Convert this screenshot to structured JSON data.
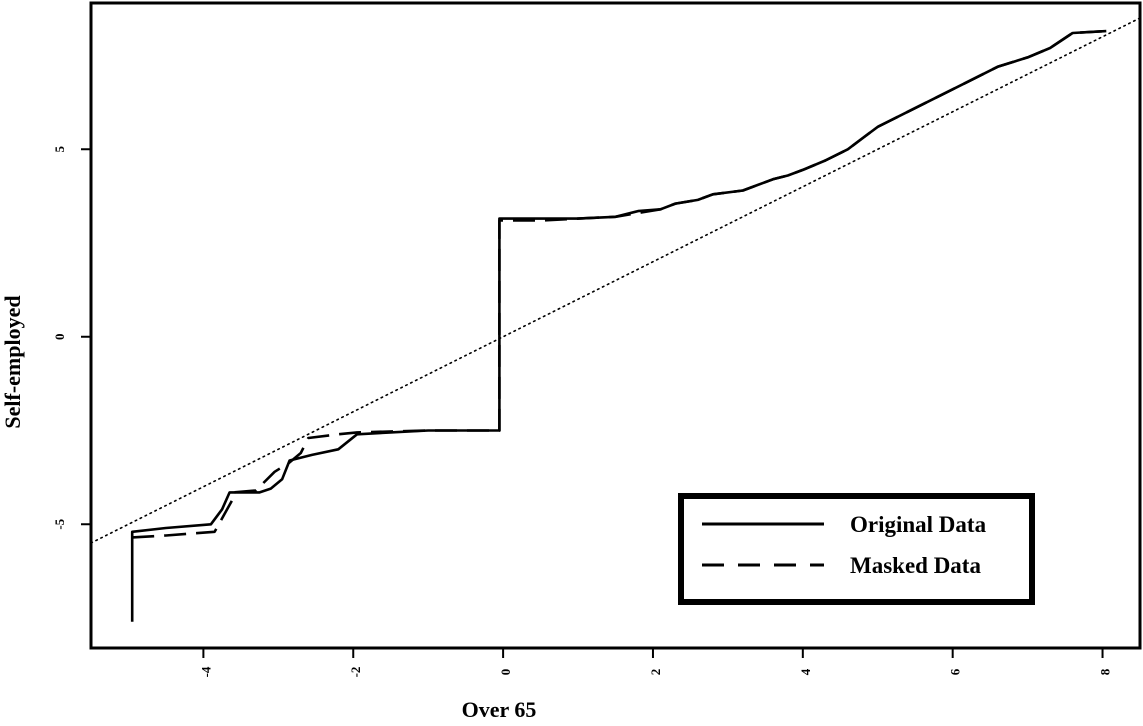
{
  "chart_data": {
    "type": "line",
    "xlabel": "Over 65",
    "ylabel": "Self-employed",
    "xlim": [
      -5.5,
      8.5
    ],
    "ylim": [
      -8.3,
      8.9
    ],
    "xticks": [
      -4,
      -2,
      0,
      2,
      4,
      6,
      8
    ],
    "yticks": [
      -5,
      0,
      5
    ],
    "grid": false,
    "legend_position": "bottom-right",
    "series": [
      {
        "name": "Original Data",
        "style": "solid",
        "color": "#000000",
        "points": [
          [
            -4.95,
            -7.6
          ],
          [
            -4.95,
            -5.2
          ],
          [
            -4.5,
            -5.1
          ],
          [
            -3.9,
            -5.0
          ],
          [
            -3.75,
            -4.6
          ],
          [
            -3.65,
            -4.15
          ],
          [
            -3.25,
            -4.15
          ],
          [
            -3.1,
            -4.05
          ],
          [
            -2.95,
            -3.8
          ],
          [
            -2.85,
            -3.3
          ],
          [
            -2.55,
            -3.15
          ],
          [
            -2.2,
            -3.0
          ],
          [
            -1.95,
            -2.6
          ],
          [
            -1.5,
            -2.55
          ],
          [
            -1.0,
            -2.5
          ],
          [
            -0.05,
            -2.5
          ],
          [
            -0.05,
            3.15
          ],
          [
            0.5,
            3.15
          ],
          [
            1.0,
            3.15
          ],
          [
            1.5,
            3.2
          ],
          [
            1.8,
            3.35
          ],
          [
            2.1,
            3.4
          ],
          [
            2.3,
            3.55
          ],
          [
            2.6,
            3.65
          ],
          [
            2.8,
            3.8
          ],
          [
            3.2,
            3.9
          ],
          [
            3.4,
            4.05
          ],
          [
            3.6,
            4.2
          ],
          [
            3.8,
            4.3
          ],
          [
            4.0,
            4.45
          ],
          [
            4.3,
            4.7
          ],
          [
            4.6,
            5.0
          ],
          [
            4.8,
            5.3
          ],
          [
            5.0,
            5.6
          ],
          [
            5.4,
            6.0
          ],
          [
            5.8,
            6.4
          ],
          [
            6.2,
            6.8
          ],
          [
            6.6,
            7.2
          ],
          [
            7.0,
            7.45
          ],
          [
            7.3,
            7.7
          ],
          [
            7.6,
            8.1
          ],
          [
            8.05,
            8.15
          ]
        ]
      },
      {
        "name": "Masked Data",
        "style": "dashed",
        "color": "#000000",
        "points": [
          [
            -4.95,
            -5.35
          ],
          [
            -4.5,
            -5.3
          ],
          [
            -3.85,
            -5.2
          ],
          [
            -3.6,
            -4.3
          ],
          [
            -3.6,
            -4.15
          ],
          [
            -3.3,
            -4.1
          ],
          [
            -3.05,
            -3.6
          ],
          [
            -2.85,
            -3.35
          ],
          [
            -2.7,
            -3.1
          ],
          [
            -2.6,
            -2.7
          ],
          [
            -2.2,
            -2.6
          ],
          [
            -1.95,
            -2.55
          ],
          [
            -1.0,
            -2.5
          ],
          [
            -0.05,
            -2.5
          ],
          [
            -0.05,
            3.1
          ],
          [
            0.5,
            3.1
          ],
          [
            1.0,
            3.15
          ],
          [
            1.5,
            3.2
          ],
          [
            1.8,
            3.3
          ],
          [
            2.1,
            3.4
          ],
          [
            2.3,
            3.55
          ],
          [
            2.6,
            3.65
          ],
          [
            2.8,
            3.8
          ],
          [
            3.2,
            3.9
          ],
          [
            3.4,
            4.05
          ],
          [
            3.6,
            4.2
          ],
          [
            3.8,
            4.3
          ],
          [
            4.0,
            4.45
          ],
          [
            4.3,
            4.7
          ],
          [
            4.6,
            5.0
          ],
          [
            4.8,
            5.3
          ],
          [
            5.0,
            5.6
          ],
          [
            5.4,
            6.0
          ],
          [
            5.8,
            6.4
          ],
          [
            6.2,
            6.8
          ],
          [
            6.6,
            7.2
          ],
          [
            7.0,
            7.45
          ],
          [
            7.3,
            7.7
          ],
          [
            7.6,
            8.1
          ],
          [
            8.05,
            8.15
          ]
        ]
      }
    ],
    "reference_line": {
      "style": "dotted",
      "slope": 1,
      "intercept": 0
    }
  }
}
